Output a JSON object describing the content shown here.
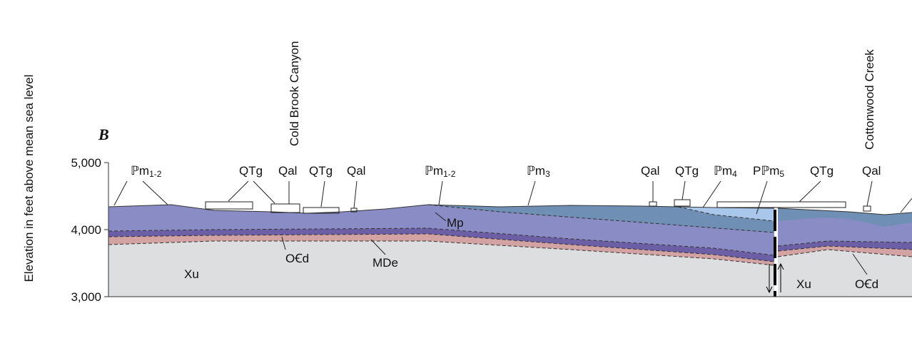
{
  "section": {
    "letter": "B",
    "axis": {
      "label": "Elevation in feet above mean sea level",
      "ticks": [
        {
          "value": 5000,
          "label": "5,000"
        },
        {
          "value": 4000,
          "label": "4,000"
        },
        {
          "value": 3000,
          "label": "3,000"
        }
      ]
    },
    "places": [
      "Cold Brook Canyon",
      "Cottonwood Creek"
    ],
    "top_labels": [
      {
        "text": "ℙm",
        "sub": "1-2"
      },
      {
        "text": "QTg"
      },
      {
        "text": "Qal"
      },
      {
        "text": "QTg"
      },
      {
        "text": "Qal"
      },
      {
        "text": "ℙm",
        "sub": "1-2"
      },
      {
        "text": "ℙm",
        "sub": "3"
      },
      {
        "text": "Qal"
      },
      {
        "text": "QTg"
      },
      {
        "text": "ℙm",
        "sub": "4"
      },
      {
        "text": "Pℙm",
        "sub": "5"
      },
      {
        "text": "QTg"
      },
      {
        "text": "Qal"
      }
    ],
    "unit_labels": [
      "Mp",
      "OꞒd",
      "MDe",
      "Xu",
      "Xu",
      "OꞒd"
    ]
  }
}
